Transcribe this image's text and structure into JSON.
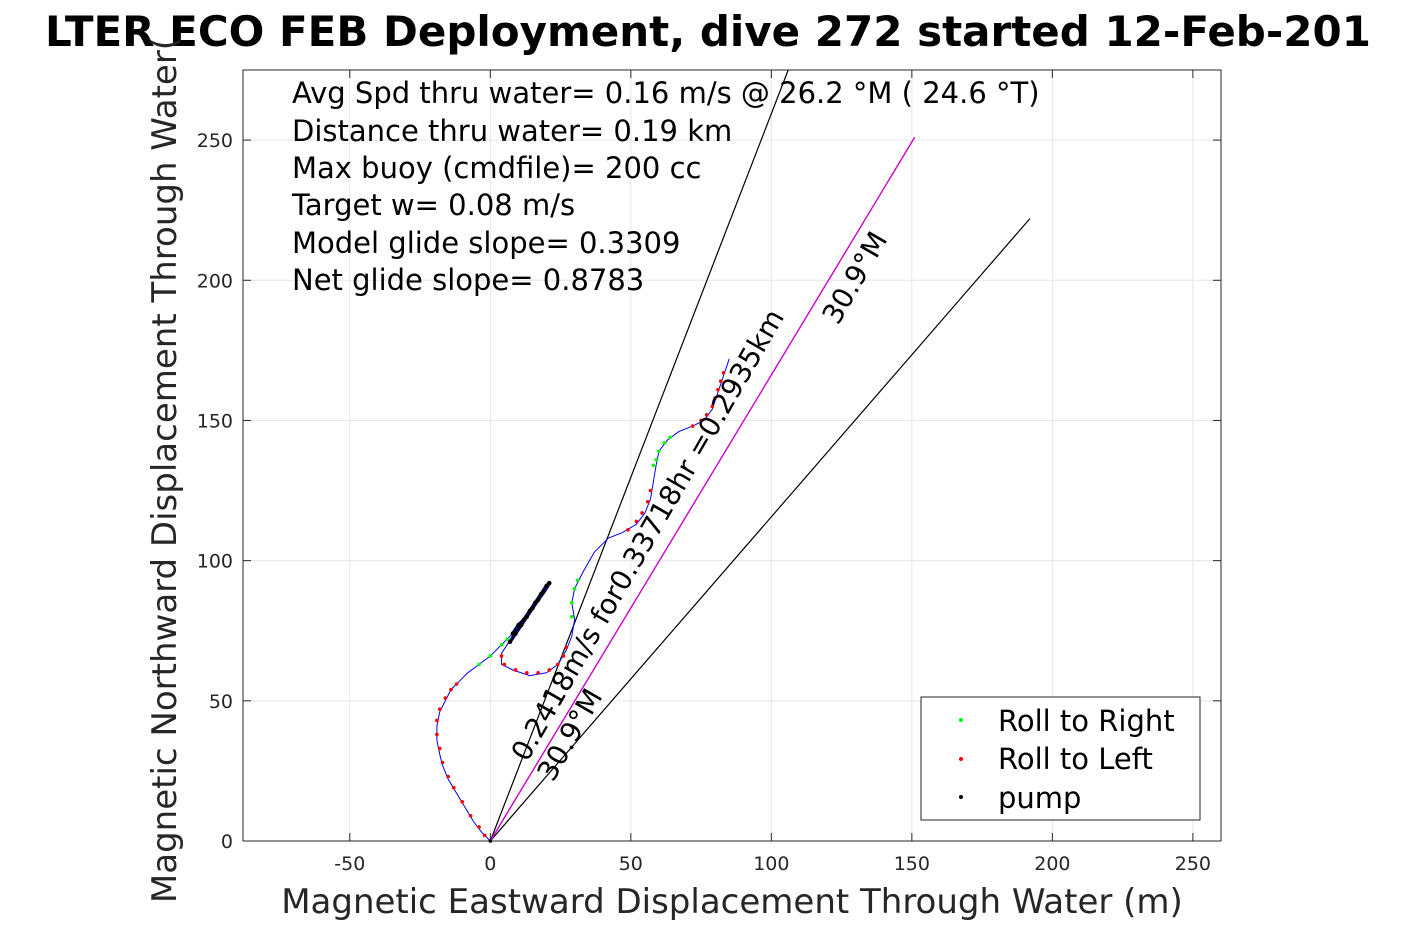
{
  "chart_data": {
    "type": "line",
    "title": "LTER ECO FEB Deployment, dive 272 started 12-Feb-201",
    "xlabel": "Magnetic Eastward Displacement Through Water (m)",
    "ylabel": "Magnetic Northward Displacement Through Water(",
    "xlim": [
      -88,
      260
    ],
    "ylim": [
      0,
      275
    ],
    "xticks": [
      -50,
      0,
      50,
      100,
      150,
      200,
      250
    ],
    "yticks": [
      0,
      50,
      100,
      150,
      200,
      250
    ],
    "xtick_labels": [
      "-50",
      "0",
      "50",
      "100",
      "150",
      "200",
      "250"
    ],
    "ytick_labels": [
      "0",
      "50",
      "100",
      "150",
      "200",
      "250"
    ],
    "grid": true,
    "legend_position": "bottom-right",
    "annotations": [
      "Avg Spd thru water=  0.16 m/s @  26.2 °M ( 24.6 °T)",
      "Distance thru water=  0.19 km",
      "Max buoy (cmdfile)= 200 cc",
      "Target w= 0.08 m/s",
      "Model glide slope= 0.3309",
      "Net glide slope= 0.8783"
    ],
    "rotated_labels": {
      "current_speed": "0.2418m/s for0.33718hr =0.2935km",
      "current_dir_bottom": "30.9°M",
      "current_dir_top": "30.9°M"
    },
    "current_vector": {
      "heading_deg_mag": 30.9,
      "end": [
        151,
        251
      ]
    },
    "cone_lines": [
      {
        "from": [
          0,
          0
        ],
        "to": [
          106,
          275
        ]
      },
      {
        "from": [
          0,
          0
        ],
        "to": [
          192,
          222
        ]
      }
    ],
    "track": [
      [
        0,
        0
      ],
      [
        -3,
        3
      ],
      [
        -6,
        7
      ],
      [
        -9,
        12
      ],
      [
        -12,
        17
      ],
      [
        -15,
        22
      ],
      [
        -17,
        27
      ],
      [
        -18,
        31
      ],
      [
        -19,
        36
      ],
      [
        -19,
        41
      ],
      [
        -18,
        46
      ],
      [
        -16,
        50
      ],
      [
        -14,
        54
      ],
      [
        -11,
        57
      ],
      [
        -8,
        60
      ],
      [
        -4,
        63
      ],
      [
        0,
        66
      ],
      [
        4,
        70
      ],
      [
        8,
        74
      ],
      [
        12,
        79
      ],
      [
        16,
        84
      ],
      [
        19,
        88
      ],
      [
        21,
        91
      ],
      [
        20,
        90
      ],
      [
        17,
        86
      ],
      [
        13,
        80
      ],
      [
        8,
        73
      ],
      [
        4,
        67
      ],
      [
        4,
        63
      ],
      [
        8,
        61
      ],
      [
        14,
        59
      ],
      [
        20,
        60
      ],
      [
        24,
        63
      ],
      [
        27,
        68
      ],
      [
        29,
        73
      ],
      [
        30,
        79
      ],
      [
        29,
        85
      ],
      [
        30,
        90
      ],
      [
        33,
        96
      ],
      [
        37,
        103
      ],
      [
        42,
        108
      ],
      [
        47,
        110
      ],
      [
        52,
        113
      ],
      [
        55,
        117
      ],
      [
        57,
        122
      ],
      [
        58,
        128
      ],
      [
        59,
        134
      ],
      [
        60,
        139
      ],
      [
        63,
        143
      ],
      [
        67,
        146
      ],
      [
        72,
        148
      ],
      [
        76,
        150
      ],
      [
        79,
        154
      ],
      [
        81,
        160
      ],
      [
        83,
        166
      ],
      [
        85,
        172
      ]
    ],
    "pump_segment": [
      [
        8,
        74
      ],
      [
        10,
        77
      ],
      [
        12,
        79
      ],
      [
        14,
        82
      ],
      [
        16,
        85
      ],
      [
        18,
        88
      ],
      [
        20,
        91
      ],
      [
        21,
        92
      ],
      [
        19,
        89
      ],
      [
        17,
        86
      ],
      [
        15,
        83
      ],
      [
        13,
        80
      ],
      [
        11,
        77
      ],
      [
        9,
        74
      ],
      [
        7,
        71
      ]
    ],
    "series": [
      {
        "name": "Roll to Right",
        "color": "#00ff00",
        "points": [
          [
            -4,
            63
          ],
          [
            0,
            66
          ],
          [
            4,
            70
          ],
          [
            6,
            72
          ],
          [
            29,
            80
          ],
          [
            29,
            85
          ],
          [
            30,
            90
          ],
          [
            31,
            93
          ],
          [
            58,
            134
          ],
          [
            59,
            136
          ],
          [
            60,
            139
          ],
          [
            62,
            142
          ],
          [
            64,
            144
          ]
        ]
      },
      {
        "name": "Roll to Left",
        "color": "#ff0000",
        "points": [
          [
            -2,
            2
          ],
          [
            -4,
            5
          ],
          [
            -7,
            9
          ],
          [
            -10,
            14
          ],
          [
            -13,
            19
          ],
          [
            -15,
            23
          ],
          [
            -17,
            28
          ],
          [
            -18,
            33
          ],
          [
            -19,
            38
          ],
          [
            -19,
            43
          ],
          [
            -18,
            47
          ],
          [
            -16,
            51
          ],
          [
            -14,
            54
          ],
          [
            -12,
            56
          ],
          [
            4,
            66
          ],
          [
            5,
            63
          ],
          [
            9,
            61
          ],
          [
            13,
            60
          ],
          [
            17,
            60
          ],
          [
            21,
            61
          ],
          [
            24,
            63
          ],
          [
            26,
            66
          ],
          [
            27,
            69
          ],
          [
            49,
            111
          ],
          [
            52,
            114
          ],
          [
            54,
            117
          ],
          [
            56,
            121
          ],
          [
            57,
            125
          ],
          [
            72,
            148
          ],
          [
            75,
            150
          ],
          [
            77,
            152
          ],
          [
            79,
            155
          ],
          [
            80,
            158
          ],
          [
            81,
            161
          ],
          [
            82,
            164
          ],
          [
            83,
            167
          ]
        ]
      },
      {
        "name": "pump",
        "color": "#000000",
        "points": [
          [
            0,
            0
          ],
          [
            21,
            92
          ],
          [
            7,
            71
          ]
        ]
      }
    ],
    "colors": {
      "track": "#0000ff",
      "current": "#cc00cc",
      "cone": "#000000",
      "grid": "#e6e6e6",
      "pump_fill": "#00004d"
    }
  }
}
